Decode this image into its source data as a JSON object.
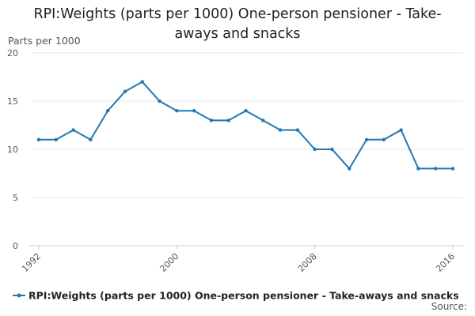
{
  "title_line1": "RPI:Weights (parts per 1000) One-person pensioner - Take-",
  "title_line2": "aways and snacks",
  "source_label": "Source:",
  "chart_data": {
    "type": "line",
    "title": "RPI:Weights (parts per 1000) One-person pensioner - Take-aways and snacks",
    "ylabel": "Parts per 1000",
    "xlabel": "",
    "ylim": [
      0,
      20
    ],
    "yticks": [
      0,
      5,
      10,
      15,
      20
    ],
    "xlim": [
      1992,
      2016
    ],
    "xticks": [
      1992,
      2000,
      2008,
      2016
    ],
    "grid": true,
    "legend_position": "bottom",
    "series": [
      {
        "name": "RPI:Weights (parts per 1000) One-person pensioner - Take-aways and snacks",
        "color": "#1f78b4",
        "x": [
          1992,
          1993,
          1994,
          1995,
          1996,
          1997,
          1998,
          1999,
          2000,
          2001,
          2002,
          2003,
          2004,
          2005,
          2006,
          2007,
          2008,
          2009,
          2010,
          2011,
          2012,
          2013,
          2014,
          2015,
          2016
        ],
        "values": [
          11,
          11,
          12,
          11,
          14,
          16,
          17,
          15,
          14,
          14,
          13,
          13,
          14,
          13,
          12,
          12,
          10,
          10,
          8,
          11,
          11,
          12,
          8,
          8,
          8
        ]
      }
    ]
  }
}
